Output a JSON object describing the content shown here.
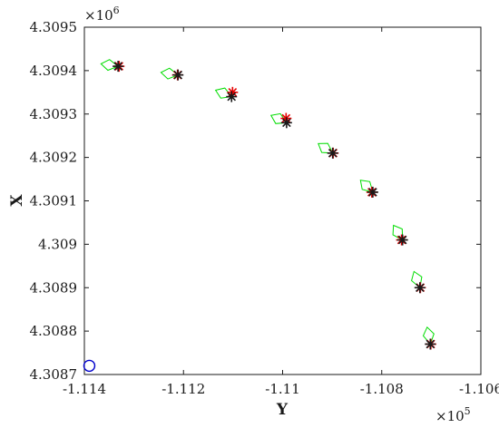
{
  "chart_data": {
    "type": "scatter",
    "title": "",
    "xlabel": "Y",
    "ylabel": "X",
    "x_exponent_base": "×10",
    "x_exponent_power": "5",
    "y_exponent_base": "×10",
    "y_exponent_power": "6",
    "xlim": [
      -1.114,
      -1.106
    ],
    "ylim": [
      4.3087,
      4.3095
    ],
    "xticks": [
      -1.114,
      -1.112,
      -1.11,
      -1.108,
      -1.106
    ],
    "xtick_labels": [
      "-1.114",
      "-1.112",
      "-1.11",
      "-1.108",
      "-1.106"
    ],
    "yticks": [
      4.3087,
      4.3088,
      4.3089,
      4.309,
      4.3091,
      4.3092,
      4.3093,
      4.3094,
      4.3095
    ],
    "ytick_labels": [
      "4.3087",
      "4.3088",
      "4.3089",
      "4.309",
      "4.3091",
      "4.3092",
      "4.3093",
      "4.3094",
      "4.3095"
    ],
    "grid": false,
    "colors": {
      "reference": "#1a1a1a",
      "estimate": "#e60000",
      "shape": "#00dd00",
      "start": "#0000cc"
    },
    "series": [
      {
        "marker": "asterisk",
        "color": "#1a1a1a",
        "x": [
          -1.11332,
          -1.11211,
          -1.11103,
          -1.10992,
          -1.10899,
          -1.10818,
          -1.10758,
          -1.10723,
          -1.10702
        ],
        "y": [
          4.30941,
          4.30939,
          4.30934,
          4.30928,
          4.30921,
          4.30912,
          4.30901,
          4.3089,
          4.30877
        ]
      },
      {
        "marker": "star",
        "color": "#e60000",
        "x": [
          -1.1133,
          -1.11212,
          -1.11101,
          -1.10993,
          -1.10898,
          -1.1082,
          -1.1076,
          -1.10722,
          -1.10701
        ],
        "y": [
          4.30941,
          4.30939,
          4.30935,
          4.30929,
          4.30921,
          4.30912,
          4.30901,
          4.3089,
          4.30877
        ]
      },
      {
        "marker": "kite",
        "color": "#00dd00",
        "x": [
          -1.11332,
          -1.11211,
          -1.11103,
          -1.10992,
          -1.10899,
          -1.10818,
          -1.10758,
          -1.10723,
          -1.10702
        ],
        "y": [
          4.30941,
          4.30939,
          4.30934,
          4.30928,
          4.30921,
          4.30912,
          4.30901,
          4.3089,
          4.30877
        ]
      },
      {
        "marker": "circle",
        "color": "#0000cc",
        "x": [
          -1.1139
        ],
        "y": [
          4.30872
        ]
      }
    ]
  }
}
